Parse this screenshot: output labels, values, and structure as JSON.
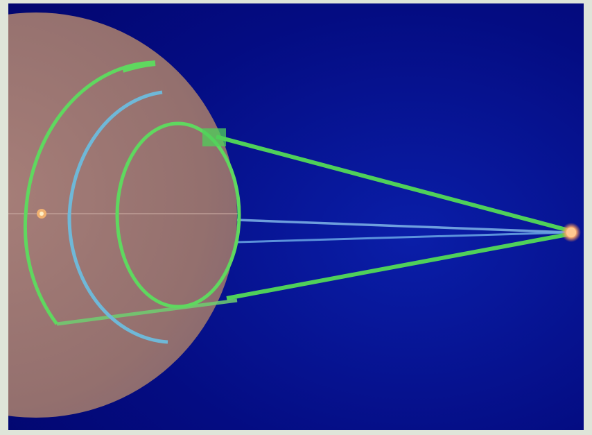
{
  "diagram": {
    "elements": [
      {
        "name": "planet-sphere",
        "color": "#9a7470"
      },
      {
        "name": "outer-orbit-arc",
        "color": "#5fd85f"
      },
      {
        "name": "middle-orbit-arc",
        "color": "#6fb8d8"
      },
      {
        "name": "inner-orbit-ring",
        "color": "#5fd85f"
      },
      {
        "name": "light-cone-lines",
        "color": "#4fd05a"
      },
      {
        "name": "inner-ray-lines",
        "color": "#7fb6e8"
      },
      {
        "name": "source-point",
        "color": "#ffb070"
      },
      {
        "name": "center-point",
        "color": "#f0b070"
      }
    ],
    "colors": {
      "background": "#02066e",
      "border": "#dfe5d9",
      "sphere": "#9a7470",
      "green": "#5fd85f",
      "blue": "#6fb8d8",
      "source": "#ffb070"
    }
  }
}
